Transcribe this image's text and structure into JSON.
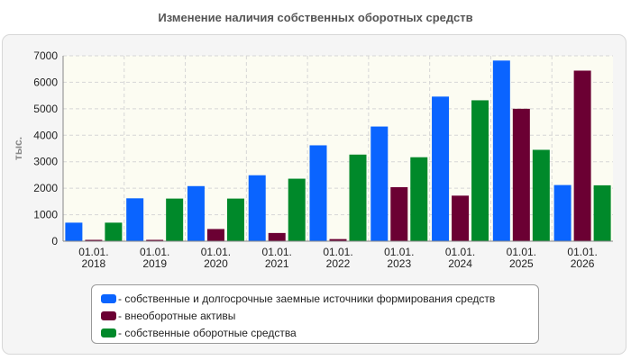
{
  "chart_data": {
    "type": "bar",
    "title": "Изменение наличия собственных оборотных средств",
    "ylabel": "тыс.",
    "xlabel": "",
    "ylim": [
      0,
      7000
    ],
    "yticks": [
      "0",
      "1000",
      "2000",
      "3000",
      "4000",
      "5000",
      "6000",
      "7000"
    ],
    "grid": true,
    "legend_position": "bottom",
    "categories": [
      [
        "01.01.",
        "2018"
      ],
      [
        "01.01.",
        "2019"
      ],
      [
        "01.01.",
        "2020"
      ],
      [
        "01.01.",
        "2021"
      ],
      [
        "01.01.",
        "2022"
      ],
      [
        "01.01.",
        "2023"
      ],
      [
        "01.01.",
        "2024"
      ],
      [
        "01.01.",
        "2025"
      ],
      [
        "01.01.",
        "2026"
      ]
    ],
    "series": [
      {
        "name": "собственные и долгосрочные заемные источники формирования средств",
        "color": "#0a64ff",
        "values": [
          700,
          1620,
          2080,
          2490,
          3620,
          4330,
          5460,
          6820,
          2120
        ]
      },
      {
        "name": "внеоборотные активы",
        "color": "#6b0033",
        "values": [
          40,
          30,
          460,
          310,
          80,
          2040,
          1720,
          5000,
          6440
        ]
      },
      {
        "name": "собственные оборотные средства",
        "color": "#00892a",
        "values": [
          700,
          1610,
          1610,
          2360,
          3270,
          3170,
          5320,
          3450,
          2110
        ]
      }
    ]
  }
}
